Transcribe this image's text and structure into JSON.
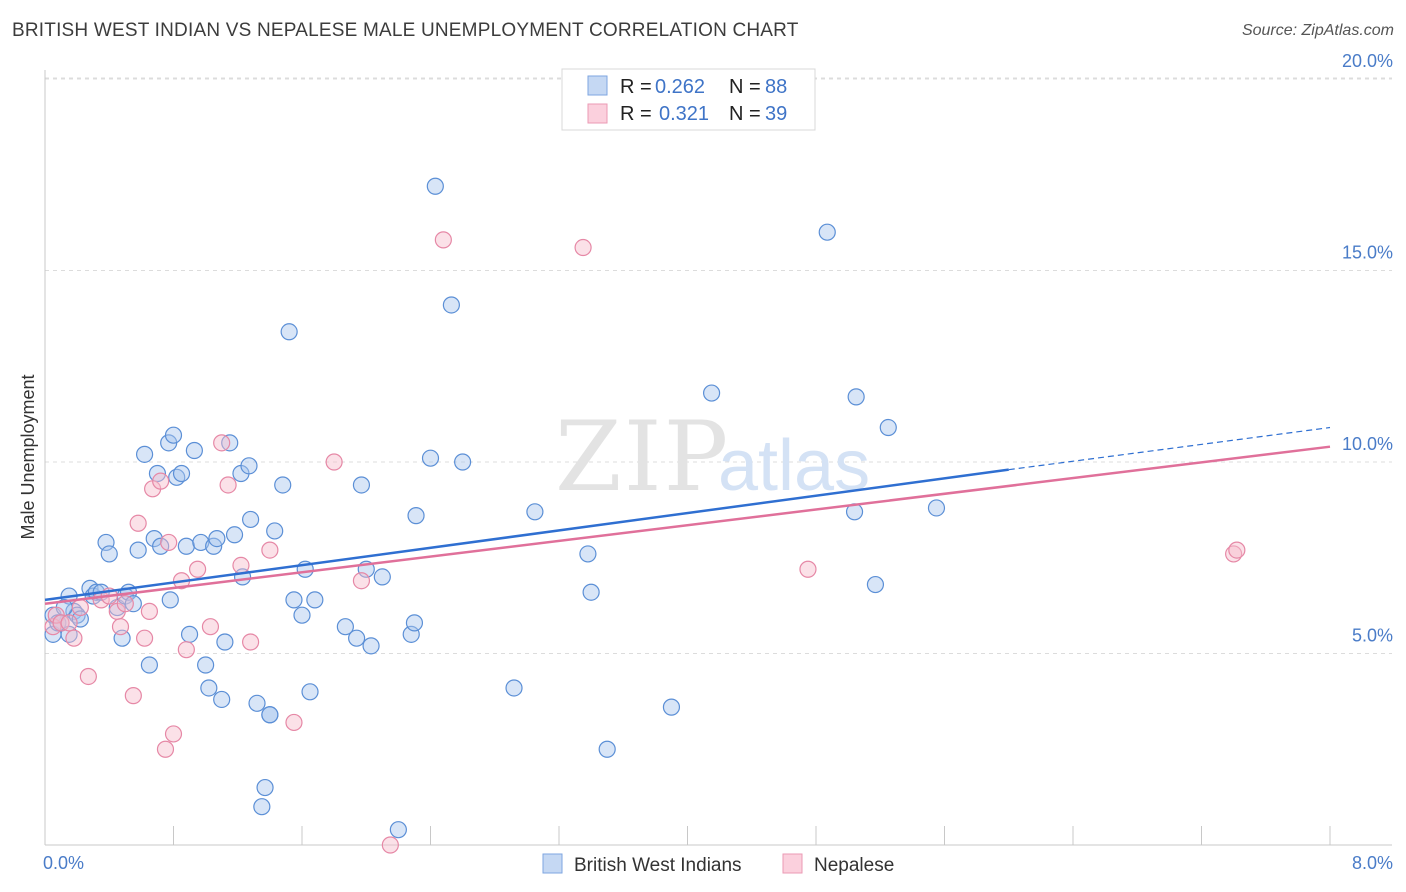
{
  "header": {
    "title": "BRITISH WEST INDIAN VS NEPALESE MALE UNEMPLOYMENT CORRELATION CHART",
    "source": "Source: ZipAtlas.com"
  },
  "watermark": {
    "zip": "ZIP",
    "atlas": "atlas"
  },
  "colors": {
    "blue_fill": "#a9c5ee",
    "blue_stroke": "#5b8fd6",
    "blue_line": "#2f6fd1",
    "pink_fill": "#f6bccd",
    "pink_stroke": "#e688a6",
    "pink_line": "#e0709a",
    "accent_text": "#4a7cc8",
    "grid": "#dcdcdc"
  },
  "stats": [
    {
      "r_label": "R =",
      "r_value": "0.262",
      "n_label": "N =",
      "n_value": "88",
      "series": "blue"
    },
    {
      "r_label": "R =",
      "r_value": "0.321",
      "n_label": "N =",
      "n_value": "39",
      "series": "pink"
    }
  ],
  "chart_data": {
    "type": "scatter",
    "title": "BRITISH WEST INDIAN VS NEPALESE MALE UNEMPLOYMENT CORRELATION CHART",
    "xlabel": "",
    "ylabel": "Male Unemployment",
    "xlim": [
      0,
      8
    ],
    "ylim": [
      0,
      20.5
    ],
    "x_tick_labels": [
      "0.0%",
      "8.0%"
    ],
    "y_ticks": [
      5,
      10,
      15,
      20
    ],
    "y_tick_labels": [
      "5.0%",
      "10.0%",
      "15.0%",
      "20.0%"
    ],
    "legend_position": "bottom-center",
    "series": [
      {
        "name": "British West Indians",
        "color": "blue",
        "trend": {
          "x0": 0,
          "y0": 6.4,
          "x1": 6.0,
          "y1": 9.8,
          "dash_to_x": 8.0,
          "dash_to_y": 10.9
        },
        "points": [
          [
            0.05,
            6.0
          ],
          [
            0.05,
            5.5
          ],
          [
            0.08,
            5.8
          ],
          [
            0.1,
            5.8
          ],
          [
            0.15,
            5.5
          ],
          [
            0.15,
            6.5
          ],
          [
            0.18,
            6.1
          ],
          [
            0.2,
            6.0
          ],
          [
            0.22,
            5.9
          ],
          [
            0.28,
            6.7
          ],
          [
            0.3,
            6.5
          ],
          [
            0.32,
            6.6
          ],
          [
            0.35,
            6.6
          ],
          [
            0.38,
            7.9
          ],
          [
            0.4,
            7.6
          ],
          [
            0.45,
            6.2
          ],
          [
            0.48,
            5.4
          ],
          [
            0.5,
            6.5
          ],
          [
            0.52,
            6.6
          ],
          [
            0.55,
            6.3
          ],
          [
            0.58,
            7.7
          ],
          [
            0.62,
            10.2
          ],
          [
            0.65,
            4.7
          ],
          [
            0.68,
            8.0
          ],
          [
            0.7,
            9.7
          ],
          [
            0.72,
            7.8
          ],
          [
            0.77,
            10.5
          ],
          [
            0.78,
            6.4
          ],
          [
            0.8,
            10.7
          ],
          [
            0.82,
            9.6
          ],
          [
            0.85,
            9.7
          ],
          [
            0.88,
            7.8
          ],
          [
            0.9,
            5.5
          ],
          [
            0.93,
            10.3
          ],
          [
            0.97,
            7.9
          ],
          [
            1.0,
            4.7
          ],
          [
            1.02,
            4.1
          ],
          [
            1.05,
            7.8
          ],
          [
            1.07,
            8.0
          ],
          [
            1.1,
            3.8
          ],
          [
            1.12,
            5.3
          ],
          [
            1.15,
            10.5
          ],
          [
            1.18,
            8.1
          ],
          [
            1.22,
            9.7
          ],
          [
            1.23,
            7.0
          ],
          [
            1.27,
            9.9
          ],
          [
            1.28,
            8.5
          ],
          [
            1.32,
            3.7
          ],
          [
            1.35,
            1.0
          ],
          [
            1.37,
            1.5
          ],
          [
            1.4,
            3.4
          ],
          [
            1.4,
            3.4
          ],
          [
            1.43,
            8.2
          ],
          [
            1.48,
            9.4
          ],
          [
            1.52,
            13.4
          ],
          [
            1.55,
            6.4
          ],
          [
            1.6,
            6.0
          ],
          [
            1.62,
            7.2
          ],
          [
            1.65,
            4.0
          ],
          [
            1.68,
            6.4
          ],
          [
            1.87,
            5.7
          ],
          [
            1.94,
            5.4
          ],
          [
            1.97,
            9.4
          ],
          [
            2.0,
            7.2
          ],
          [
            2.03,
            5.2
          ],
          [
            2.1,
            7.0
          ],
          [
            2.2,
            0.4
          ],
          [
            2.28,
            5.5
          ],
          [
            2.3,
            5.8
          ],
          [
            2.31,
            8.6
          ],
          [
            2.4,
            10.1
          ],
          [
            2.43,
            17.2
          ],
          [
            2.53,
            14.1
          ],
          [
            2.6,
            10.0
          ],
          [
            2.92,
            4.1
          ],
          [
            3.05,
            8.7
          ],
          [
            3.38,
            7.6
          ],
          [
            3.4,
            6.6
          ],
          [
            3.5,
            2.5
          ],
          [
            3.9,
            3.6
          ],
          [
            4.15,
            11.8
          ],
          [
            4.87,
            16.0
          ],
          [
            5.04,
            8.7
          ],
          [
            5.05,
            11.7
          ],
          [
            5.17,
            6.8
          ],
          [
            5.25,
            10.9
          ],
          [
            5.55,
            8.8
          ],
          [
            0.12,
            6.2
          ]
        ]
      },
      {
        "name": "Nepalese",
        "color": "pink",
        "trend": {
          "x0": 0,
          "y0": 6.3,
          "x1": 8.0,
          "y1": 10.4
        },
        "points": [
          [
            0.05,
            5.7
          ],
          [
            0.07,
            6.0
          ],
          [
            0.1,
            5.8
          ],
          [
            0.15,
            5.8
          ],
          [
            0.18,
            5.4
          ],
          [
            0.22,
            6.2
          ],
          [
            0.27,
            4.4
          ],
          [
            0.35,
            6.4
          ],
          [
            0.4,
            6.5
          ],
          [
            0.45,
            6.1
          ],
          [
            0.47,
            5.7
          ],
          [
            0.5,
            6.3
          ],
          [
            0.55,
            3.9
          ],
          [
            0.58,
            8.4
          ],
          [
            0.62,
            5.4
          ],
          [
            0.67,
            9.3
          ],
          [
            0.72,
            9.5
          ],
          [
            0.75,
            2.5
          ],
          [
            0.77,
            7.9
          ],
          [
            0.8,
            2.9
          ],
          [
            0.85,
            6.9
          ],
          [
            0.88,
            5.1
          ],
          [
            0.95,
            7.2
          ],
          [
            1.03,
            5.7
          ],
          [
            1.1,
            10.5
          ],
          [
            1.14,
            9.4
          ],
          [
            1.22,
            7.3
          ],
          [
            1.28,
            5.3
          ],
          [
            1.4,
            7.7
          ],
          [
            1.55,
            3.2
          ],
          [
            1.8,
            10.0
          ],
          [
            1.97,
            6.9
          ],
          [
            2.15,
            0.0
          ],
          [
            2.48,
            15.8
          ],
          [
            3.35,
            15.6
          ],
          [
            4.75,
            7.2
          ],
          [
            7.4,
            7.6
          ],
          [
            7.42,
            7.7
          ],
          [
            0.65,
            6.1
          ]
        ]
      }
    ]
  },
  "legend": {
    "items": [
      {
        "label": "British West Indians",
        "color": "blue"
      },
      {
        "label": "Nepalese",
        "color": "pink"
      }
    ]
  }
}
